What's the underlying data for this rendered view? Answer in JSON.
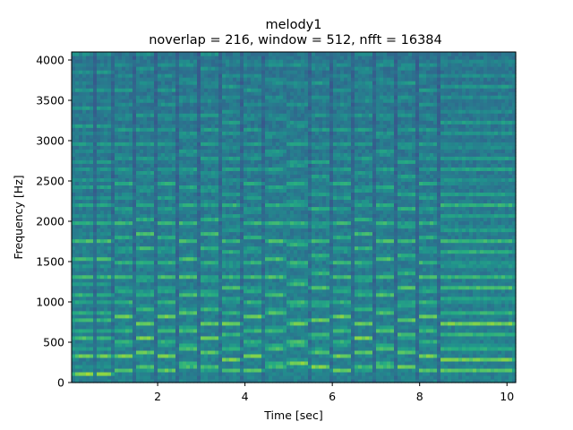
{
  "chart_data": {
    "type": "heatmap",
    "title": "melody1",
    "subtitle": "noverlap = 216, window = 512, nfft = 16384",
    "xlabel": "Time [sec]",
    "ylabel": "Frequency [Hz]",
    "xlim": [
      0.03,
      10.2
    ],
    "ylim": [
      0,
      4100
    ],
    "xticks": [
      2,
      4,
      6,
      8,
      10
    ],
    "yticks": [
      0,
      500,
      1000,
      1500,
      2000,
      2500,
      3000,
      3500,
      4000
    ],
    "colormap": "viridis",
    "grid": false,
    "fundamental_hz": 110,
    "notes": [
      {
        "t0": 0.03,
        "t1": 0.55,
        "f0": 110
      },
      {
        "t0": 0.55,
        "t1": 1.0,
        "f0": 110
      },
      {
        "t0": 1.0,
        "t1": 1.48,
        "f0": 165
      },
      {
        "t0": 1.48,
        "t1": 1.95,
        "f0": 185
      },
      {
        "t0": 1.95,
        "t1": 2.45,
        "f0": 165
      },
      {
        "t0": 2.45,
        "t1": 2.95,
        "f0": 220
      },
      {
        "t0": 2.95,
        "t1": 3.45,
        "f0": 185
      },
      {
        "t0": 3.45,
        "t1": 3.95,
        "f0": 147
      },
      {
        "t0": 3.95,
        "t1": 4.45,
        "f0": 165
      },
      {
        "t0": 4.45,
        "t1": 4.95,
        "f0": 220
      },
      {
        "t0": 4.95,
        "t1": 5.45,
        "f0": 247
      },
      {
        "t0": 5.45,
        "t1": 5.95,
        "f0": 196
      },
      {
        "t0": 5.95,
        "t1": 6.45,
        "f0": 165
      },
      {
        "t0": 6.45,
        "t1": 6.95,
        "f0": 185
      },
      {
        "t0": 6.95,
        "t1": 7.45,
        "f0": 220
      },
      {
        "t0": 7.45,
        "t1": 7.95,
        "f0": 196
      },
      {
        "t0": 7.95,
        "t1": 8.45,
        "f0": 165
      },
      {
        "t0": 8.45,
        "t1": 10.2,
        "f0": 147
      }
    ]
  }
}
